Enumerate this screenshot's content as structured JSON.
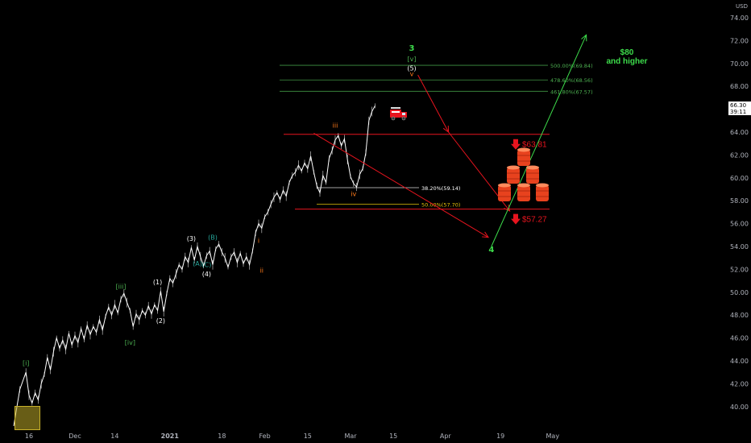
{
  "colors": {
    "background": "#000000",
    "price": "#ffffff",
    "red": "#e8141e",
    "green": "#4caf50",
    "bright_green": "#3ddc4b",
    "teal": "#26a69a",
    "orange": "#ff7a1a",
    "yellow": "#e6c20a",
    "grid_text": "#b2b5be"
  },
  "chart_data": {
    "type": "line",
    "currency_label": "USD",
    "ylim": [
      38,
      75
    ],
    "y_ticks": [
      "74.00",
      "72.00",
      "70.00",
      "68.00",
      "66.00",
      "64.00",
      "62.00",
      "60.00",
      "58.00",
      "56.00",
      "54.00",
      "52.00",
      "50.00",
      "48.00",
      "46.00",
      "44.00",
      "42.00",
      "40.00"
    ],
    "x_ticks": [
      {
        "label": "16",
        "day": 0
      },
      {
        "label": "Dec",
        "day": 15
      },
      {
        "label": "14",
        "day": 28
      },
      {
        "label": "2021",
        "day": 46
      },
      {
        "label": "18",
        "day": 63
      },
      {
        "label": "Feb",
        "day": 77
      },
      {
        "label": "15",
        "day": 91
      },
      {
        "label": "Mar",
        "day": 105
      },
      {
        "label": "15",
        "day": 119
      },
      {
        "label": "Apr",
        "day": 136
      },
      {
        "label": "19",
        "day": 154
      },
      {
        "label": "May",
        "day": 171
      }
    ],
    "last_price": {
      "value": "66.30",
      "countdown": "39:11",
      "y": 66.3
    },
    "price_series": {
      "name": "",
      "points": [
        [
          -5,
          38.3
        ],
        [
          -3,
          41.5
        ],
        [
          -1,
          43.0
        ],
        [
          0,
          41.0
        ],
        [
          1,
          40.3
        ],
        [
          2,
          41.2
        ],
        [
          3,
          40.6
        ],
        [
          4,
          42.0
        ],
        [
          5,
          42.8
        ],
        [
          6,
          44.3
        ],
        [
          7,
          43.2
        ],
        [
          8,
          44.8
        ],
        [
          9,
          46.0
        ],
        [
          10,
          45.1
        ],
        [
          11,
          45.8
        ],
        [
          12,
          45.0
        ],
        [
          13,
          46.4
        ],
        [
          14,
          45.4
        ],
        [
          15,
          46.2
        ],
        [
          16,
          45.6
        ],
        [
          17,
          46.8
        ],
        [
          18,
          45.9
        ],
        [
          19,
          47.1
        ],
        [
          20,
          46.3
        ],
        [
          21,
          47.0
        ],
        [
          22,
          46.5
        ],
        [
          23,
          47.6
        ],
        [
          24,
          46.7
        ],
        [
          25,
          47.9
        ],
        [
          26,
          48.7
        ],
        [
          27,
          48.0
        ],
        [
          28,
          48.9
        ],
        [
          29,
          48.2
        ],
        [
          30,
          49.4
        ],
        [
          31,
          49.9
        ],
        [
          32,
          49.1
        ],
        [
          33,
          48.4
        ],
        [
          34,
          47.0
        ],
        [
          35,
          48.1
        ],
        [
          36,
          47.6
        ],
        [
          37,
          48.4
        ],
        [
          38,
          48.0
        ],
        [
          39,
          48.8
        ],
        [
          40,
          48.1
        ],
        [
          41,
          48.9
        ],
        [
          42,
          48.4
        ],
        [
          43,
          50.1
        ],
        [
          44,
          48.3
        ],
        [
          45,
          49.9
        ],
        [
          46,
          51.2
        ],
        [
          47,
          50.8
        ],
        [
          48,
          51.6
        ],
        [
          49,
          52.4
        ],
        [
          50,
          52.0
        ],
        [
          51,
          53.1
        ],
        [
          52,
          52.6
        ],
        [
          53,
          53.9
        ],
        [
          54,
          52.8
        ],
        [
          55,
          54.0
        ],
        [
          56,
          53.1
        ],
        [
          57,
          52.3
        ],
        [
          58,
          53.2
        ],
        [
          59,
          53.6
        ],
        [
          60,
          52.4
        ],
        [
          61,
          53.8
        ],
        [
          62,
          54.2
        ],
        [
          63,
          53.5
        ],
        [
          64,
          53.0
        ],
        [
          65,
          52.2
        ],
        [
          66,
          53.1
        ],
        [
          67,
          53.5
        ],
        [
          68,
          52.6
        ],
        [
          69,
          53.4
        ],
        [
          70,
          52.5
        ],
        [
          71,
          53.1
        ],
        [
          72,
          52.4
        ],
        [
          73,
          53.6
        ],
        [
          74,
          55.2
        ],
        [
          75,
          56.0
        ],
        [
          76,
          55.6
        ],
        [
          77,
          56.6
        ],
        [
          78,
          57.0
        ],
        [
          79,
          57.7
        ],
        [
          80,
          58.3
        ],
        [
          81,
          58.7
        ],
        [
          82,
          58.1
        ],
        [
          83,
          58.9
        ],
        [
          84,
          58.4
        ],
        [
          85,
          59.6
        ],
        [
          86,
          60.2
        ],
        [
          87,
          60.5
        ],
        [
          88,
          61.1
        ],
        [
          89,
          60.6
        ],
        [
          90,
          61.3
        ],
        [
          91,
          60.8
        ],
        [
          92,
          61.9
        ],
        [
          93,
          60.5
        ],
        [
          94,
          59.3
        ],
        [
          95,
          58.7
        ],
        [
          96,
          60.2
        ],
        [
          97,
          59.6
        ],
        [
          98,
          61.7
        ],
        [
          99,
          62.4
        ],
        [
          100,
          63.3
        ],
        [
          101,
          63.7
        ],
        [
          102,
          62.8
        ],
        [
          103,
          63.4
        ],
        [
          104,
          61.6
        ],
        [
          105,
          60.1
        ],
        [
          106,
          59.5
        ],
        [
          107,
          59.2
        ],
        [
          108,
          60.3
        ],
        [
          109,
          60.8
        ],
        [
          110,
          62.2
        ],
        [
          111,
          65.0
        ],
        [
          112,
          65.8
        ],
        [
          113,
          66.3
        ]
      ]
    },
    "fib_levels": [
      {
        "label": "500.00%(69.84)",
        "value": 69.84,
        "color": "#4caf50"
      },
      {
        "label": "478.60%(68.56)",
        "value": 68.56,
        "color": "#4caf50"
      },
      {
        "label": "461.80%(67.57)",
        "value": 67.57,
        "color": "#4caf50"
      },
      {
        "label": "38.20%(59.14)",
        "value": 59.14,
        "color": "#ffffff"
      },
      {
        "label": "50.00%(57.70)",
        "value": 57.7,
        "color": "#e6c20a"
      }
    ],
    "resistance_lines": [
      {
        "value": 63.81,
        "label": "$63.81",
        "color": "#e8141e"
      },
      {
        "value": 57.27,
        "label": "$57.27",
        "color": "#e8141e"
      }
    ],
    "wave_labels": [
      {
        "text": "[i]",
        "day": -1,
        "y": 43.6,
        "color": "#4caf50"
      },
      {
        "text": "[iii]",
        "day": 30,
        "y": 50.3,
        "color": "#4caf50"
      },
      {
        "text": "[iv]",
        "day": 33,
        "y": 45.4,
        "color": "#4caf50"
      },
      {
        "text": "(1)",
        "day": 42,
        "y": 50.7,
        "color": "#ffffff"
      },
      {
        "text": "(2)",
        "day": 43,
        "y": 47.3,
        "color": "#ffffff"
      },
      {
        "text": "(3)",
        "day": 53,
        "y": 54.5,
        "color": "#ffffff"
      },
      {
        "text": "(4)",
        "day": 58,
        "y": 51.4,
        "color": "#ffffff"
      },
      {
        "text": "(A)",
        "day": 55,
        "y": 52.3,
        "color": "#26a69a"
      },
      {
        "text": "(B)",
        "day": 60,
        "y": 54.6,
        "color": "#26a69a"
      },
      {
        "text": "(C)",
        "day": 58,
        "y": 52.2,
        "color": "#26a69a"
      },
      {
        "text": "i",
        "day": 75,
        "y": 54.3,
        "color": "#ff7a1a"
      },
      {
        "text": "ii",
        "day": 76,
        "y": 51.7,
        "color": "#ff7a1a"
      },
      {
        "text": "iii",
        "day": 100,
        "y": 64.4,
        "color": "#ff7a1a"
      },
      {
        "text": "iv",
        "day": 106,
        "y": 58.4,
        "color": "#ff7a1a"
      },
      {
        "text": "v",
        "day": 125,
        "y": 68.9,
        "color": "#ff7a1a"
      },
      {
        "text": "(5)",
        "day": 125,
        "y": 69.4,
        "color": "#ffffff"
      },
      {
        "text": "[v]",
        "day": 125,
        "y": 70.2,
        "color": "#4caf50"
      },
      {
        "text": "3",
        "day": 125,
        "y": 71.1,
        "color": "#3ddc4b"
      },
      {
        "text": "4",
        "day": 151,
        "y": 53.5,
        "color": "#3ddc4b"
      }
    ],
    "forecast_paths": [
      {
        "color": "#e8141e",
        "points": [
          [
            127,
            69.0
          ],
          [
            137,
            64.0
          ]
        ]
      },
      {
        "color": "#e8141e",
        "points": [
          [
            137,
            64.0
          ],
          [
            157,
            57.1
          ]
        ]
      },
      {
        "color": "#e8141e",
        "points": [
          [
            93,
            63.9
          ],
          [
            150,
            54.8
          ]
        ]
      },
      {
        "color": "#3ddc4b",
        "points": [
          [
            151,
            54.0
          ],
          [
            182,
            72.5
          ]
        ]
      }
    ],
    "target_annotation": {
      "line1": "$80",
      "line2": "and higher",
      "color": "#3ddc4b"
    }
  }
}
